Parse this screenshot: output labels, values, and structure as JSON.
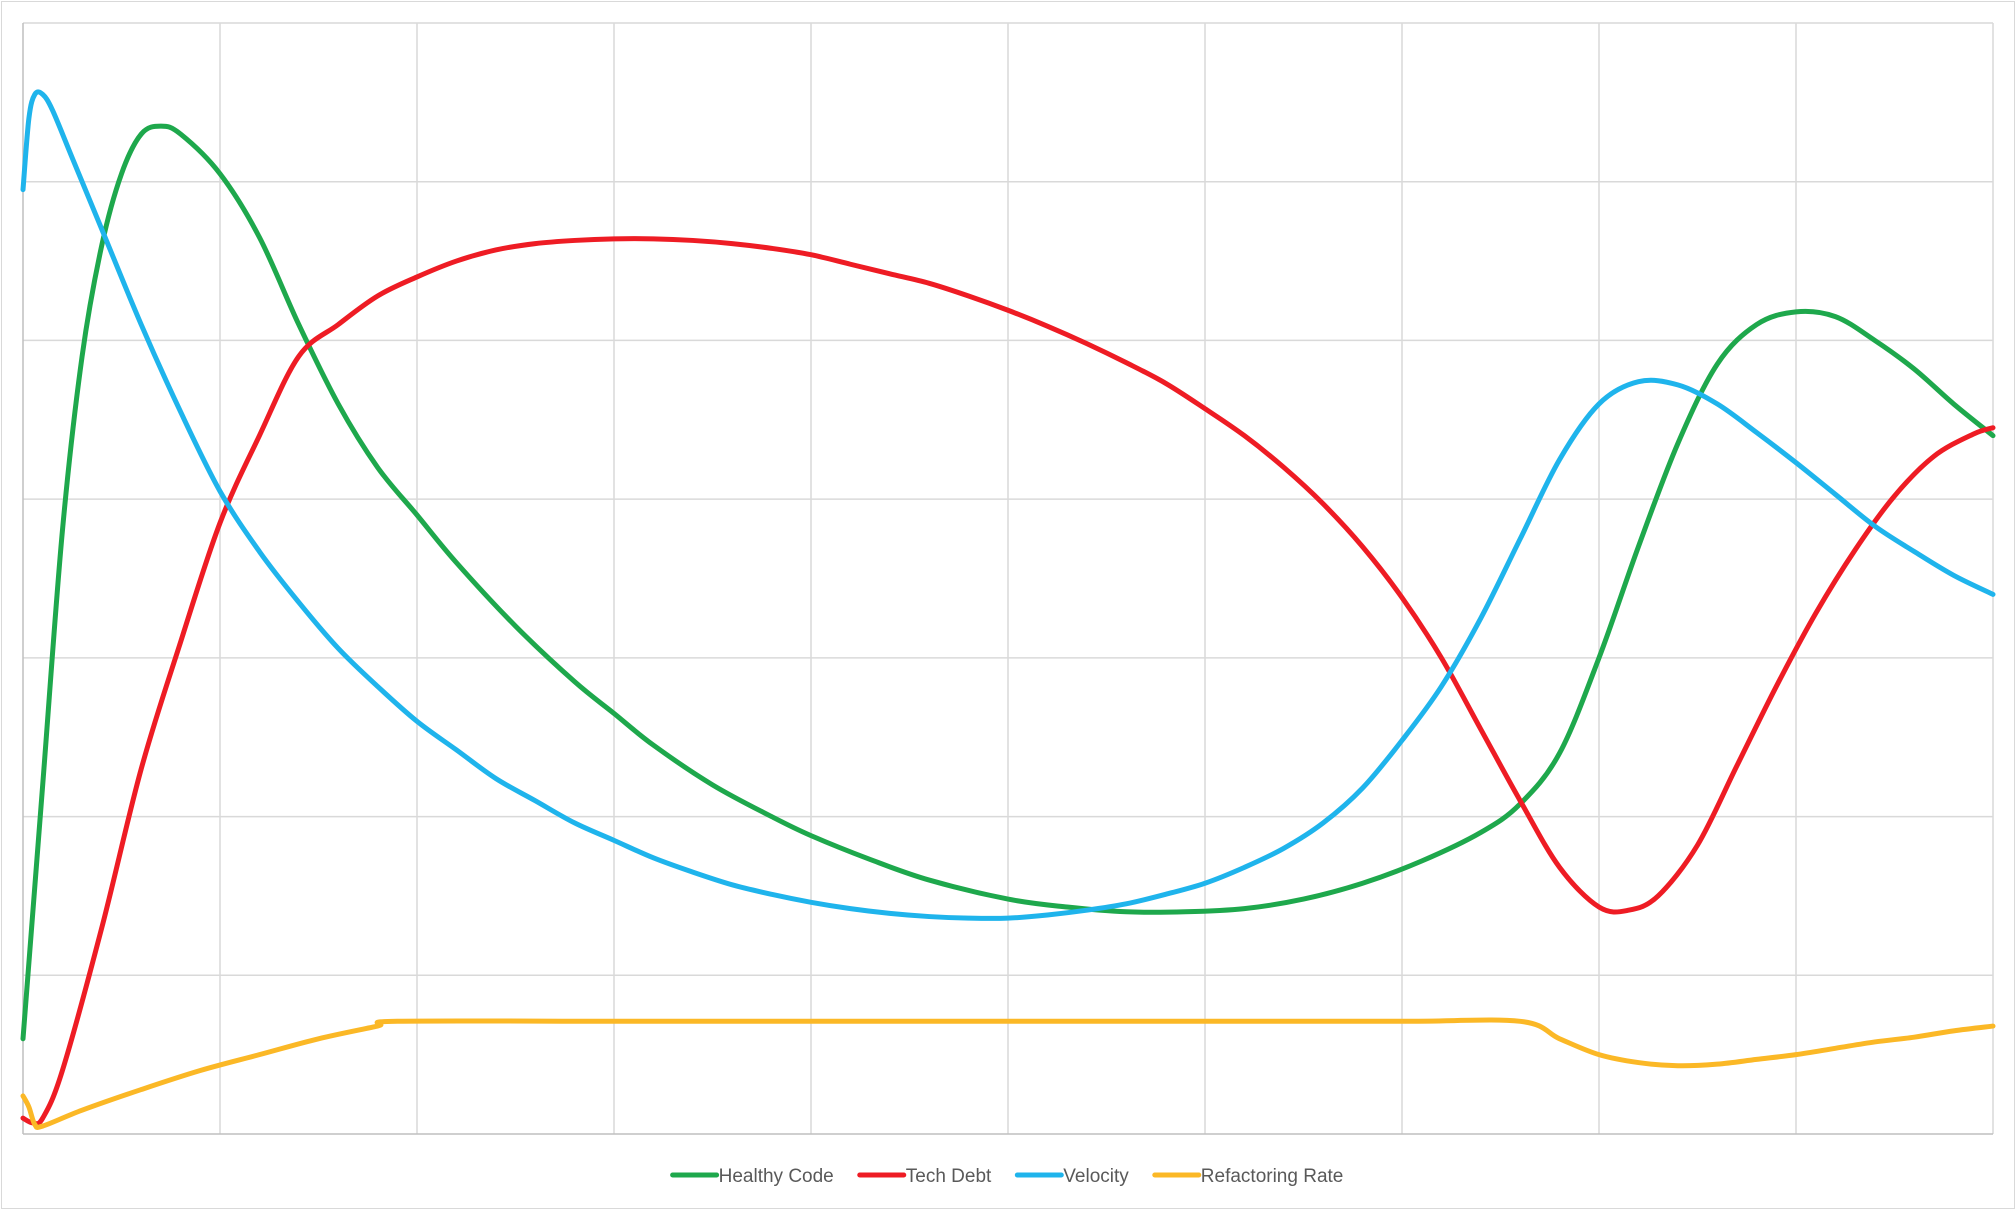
{
  "chart_data": {
    "type": "line",
    "title": "",
    "xlabel": "",
    "ylabel": "",
    "xlim": [
      0,
      100
    ],
    "ylim": [
      0,
      7
    ],
    "grid": true,
    "x_gridlines": 10,
    "y_gridlines": 7,
    "show_tick_labels": false,
    "legend_position": "bottom",
    "series": [
      {
        "name": "Healthy Code",
        "color": "#1ea84c",
        "points": [
          [
            0,
            0.6
          ],
          [
            1,
            2.2
          ],
          [
            2,
            3.8
          ],
          [
            3,
            4.9
          ],
          [
            4,
            5.6
          ],
          [
            5,
            6.05
          ],
          [
            6,
            6.3
          ],
          [
            7,
            6.35
          ],
          [
            8,
            6.3
          ],
          [
            10,
            6.05
          ],
          [
            12,
            5.65
          ],
          [
            14,
            5.1
          ],
          [
            16,
            4.6
          ],
          [
            18,
            4.2
          ],
          [
            20,
            3.9
          ],
          [
            22,
            3.6
          ],
          [
            25,
            3.2
          ],
          [
            28,
            2.85
          ],
          [
            30,
            2.65
          ],
          [
            32,
            2.45
          ],
          [
            35,
            2.2
          ],
          [
            38,
            2.0
          ],
          [
            40,
            1.88
          ],
          [
            43,
            1.73
          ],
          [
            46,
            1.6
          ],
          [
            50,
            1.48
          ],
          [
            53,
            1.43
          ],
          [
            56,
            1.4
          ],
          [
            59,
            1.4
          ],
          [
            62,
            1.42
          ],
          [
            65,
            1.48
          ],
          [
            68,
            1.58
          ],
          [
            71,
            1.72
          ],
          [
            74,
            1.9
          ],
          [
            76,
            2.08
          ],
          [
            78,
            2.4
          ],
          [
            80,
            3.0
          ],
          [
            82,
            3.7
          ],
          [
            84,
            4.35
          ],
          [
            86,
            4.85
          ],
          [
            88,
            5.1
          ],
          [
            90,
            5.18
          ],
          [
            92,
            5.15
          ],
          [
            94,
            5.0
          ],
          [
            96,
            4.82
          ],
          [
            98,
            4.6
          ],
          [
            100,
            4.4
          ]
        ]
      },
      {
        "name": "Tech Debt",
        "color": "#ee1c24",
        "points": [
          [
            0,
            0.1
          ],
          [
            0.5,
            0.07
          ],
          [
            1,
            0.1
          ],
          [
            2,
            0.4
          ],
          [
            4,
            1.3
          ],
          [
            6,
            2.3
          ],
          [
            8,
            3.1
          ],
          [
            10,
            3.85
          ],
          [
            12,
            4.4
          ],
          [
            14,
            4.9
          ],
          [
            16,
            5.1
          ],
          [
            18,
            5.28
          ],
          [
            20,
            5.4
          ],
          [
            22,
            5.5
          ],
          [
            24,
            5.57
          ],
          [
            26,
            5.61
          ],
          [
            28,
            5.63
          ],
          [
            30,
            5.64
          ],
          [
            32,
            5.64
          ],
          [
            34,
            5.63
          ],
          [
            36,
            5.61
          ],
          [
            38,
            5.58
          ],
          [
            40,
            5.54
          ],
          [
            42,
            5.48
          ],
          [
            44,
            5.42
          ],
          [
            46,
            5.36
          ],
          [
            48,
            5.28
          ],
          [
            50,
            5.19
          ],
          [
            52,
            5.09
          ],
          [
            54,
            4.98
          ],
          [
            56,
            4.86
          ],
          [
            58,
            4.73
          ],
          [
            60,
            4.57
          ],
          [
            62,
            4.4
          ],
          [
            64,
            4.2
          ],
          [
            66,
            3.97
          ],
          [
            68,
            3.7
          ],
          [
            70,
            3.38
          ],
          [
            72,
            3.0
          ],
          [
            74,
            2.55
          ],
          [
            76,
            2.1
          ],
          [
            78,
            1.68
          ],
          [
            80,
            1.43
          ],
          [
            81.5,
            1.41
          ],
          [
            83,
            1.5
          ],
          [
            85,
            1.82
          ],
          [
            87,
            2.32
          ],
          [
            89,
            2.82
          ],
          [
            91,
            3.28
          ],
          [
            93,
            3.68
          ],
          [
            95,
            4.02
          ],
          [
            97,
            4.27
          ],
          [
            99,
            4.41
          ],
          [
            100,
            4.45
          ]
        ]
      },
      {
        "name": "Velocity",
        "color": "#1fb4ec",
        "points": [
          [
            0,
            5.95
          ],
          [
            0.3,
            6.4
          ],
          [
            0.6,
            6.55
          ],
          [
            1,
            6.55
          ],
          [
            1.5,
            6.45
          ],
          [
            2.5,
            6.15
          ],
          [
            4,
            5.7
          ],
          [
            6,
            5.1
          ],
          [
            8,
            4.55
          ],
          [
            10,
            4.05
          ],
          [
            12,
            3.67
          ],
          [
            14,
            3.35
          ],
          [
            16,
            3.06
          ],
          [
            18,
            2.82
          ],
          [
            20,
            2.6
          ],
          [
            22,
            2.42
          ],
          [
            24,
            2.24
          ],
          [
            26,
            2.1
          ],
          [
            28,
            1.96
          ],
          [
            30,
            1.85
          ],
          [
            32,
            1.74
          ],
          [
            34,
            1.65
          ],
          [
            36,
            1.57
          ],
          [
            38,
            1.51
          ],
          [
            40,
            1.46
          ],
          [
            42,
            1.42
          ],
          [
            44,
            1.39
          ],
          [
            46,
            1.37
          ],
          [
            48,
            1.36
          ],
          [
            50,
            1.36
          ],
          [
            52,
            1.38
          ],
          [
            54,
            1.41
          ],
          [
            56,
            1.45
          ],
          [
            58,
            1.51
          ],
          [
            60,
            1.58
          ],
          [
            62,
            1.68
          ],
          [
            64,
            1.8
          ],
          [
            66,
            1.96
          ],
          [
            68,
            2.18
          ],
          [
            70,
            2.48
          ],
          [
            72,
            2.82
          ],
          [
            74,
            3.25
          ],
          [
            76,
            3.75
          ],
          [
            78,
            4.25
          ],
          [
            80,
            4.6
          ],
          [
            82,
            4.74
          ],
          [
            84,
            4.72
          ],
          [
            86,
            4.6
          ],
          [
            88,
            4.42
          ],
          [
            90,
            4.23
          ],
          [
            92,
            4.03
          ],
          [
            94,
            3.83
          ],
          [
            96,
            3.67
          ],
          [
            98,
            3.52
          ],
          [
            100,
            3.4
          ]
        ]
      },
      {
        "name": "Refactoring Rate",
        "color": "#fbb826",
        "points": [
          [
            0,
            0.24
          ],
          [
            0.3,
            0.17
          ],
          [
            0.6,
            0.06
          ],
          [
            1,
            0.05
          ],
          [
            3,
            0.15
          ],
          [
            6,
            0.28
          ],
          [
            9,
            0.4
          ],
          [
            12,
            0.5
          ],
          [
            15,
            0.6
          ],
          [
            18,
            0.68
          ],
          [
            19,
            0.71
          ],
          [
            30,
            0.71
          ],
          [
            40,
            0.71
          ],
          [
            50,
            0.71
          ],
          [
            60,
            0.71
          ],
          [
            70,
            0.71
          ],
          [
            76,
            0.71
          ],
          [
            78,
            0.6
          ],
          [
            80,
            0.5
          ],
          [
            82,
            0.45
          ],
          [
            84,
            0.43
          ],
          [
            86,
            0.44
          ],
          [
            88,
            0.47
          ],
          [
            90,
            0.5
          ],
          [
            92,
            0.54
          ],
          [
            94,
            0.58
          ],
          [
            96,
            0.61
          ],
          [
            98,
            0.65
          ],
          [
            100,
            0.68
          ]
        ]
      }
    ]
  }
}
